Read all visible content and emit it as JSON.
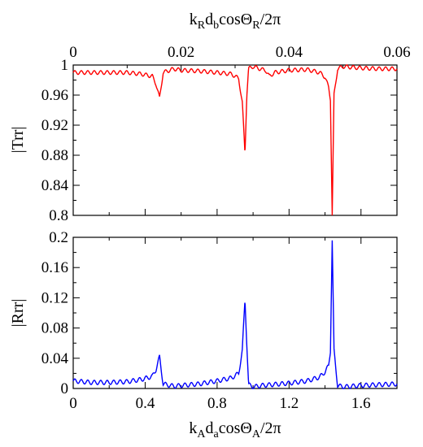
{
  "chart_data": [
    {
      "type": "line",
      "ylabel": "|Trr|",
      "ylim": [
        0.8,
        1.0
      ],
      "yticks": [
        "0.8",
        "0.84",
        "0.88",
        "0.92",
        "0.96",
        "1"
      ],
      "xlim": [
        0,
        1.8
      ],
      "top_axis": {
        "label_main": "k",
        "label_sub1": "R",
        "label_mid": "d",
        "label_sub2": "b",
        "label_cos": "cosΘ",
        "label_sub3": "R",
        "label_tail": "/2π",
        "lim": [
          0,
          0.06
        ],
        "ticks": [
          "0",
          "0.02",
          "0.04",
          "0.06"
        ]
      },
      "series": [
        {
          "color": "#ff0000",
          "x": [
            0,
            0.1,
            0.2,
            0.3,
            0.38,
            0.44,
            0.46,
            0.48,
            0.5,
            0.56,
            0.6,
            0.7,
            0.8,
            0.88,
            0.92,
            0.94,
            0.955,
            0.965,
            0.975,
            1.0,
            1.05,
            1.07,
            1.09,
            1.12,
            1.2,
            1.3,
            1.37,
            1.4,
            1.42,
            1.43,
            1.44,
            1.45,
            1.47,
            1.5,
            1.6,
            1.7,
            1.8
          ],
          "y": [
            0.99,
            0.99,
            0.99,
            0.99,
            0.988,
            0.985,
            0.975,
            0.956,
            0.99,
            0.995,
            0.993,
            0.992,
            0.99,
            0.988,
            0.982,
            0.95,
            0.882,
            0.96,
            0.995,
            0.998,
            0.994,
            0.993,
            0.985,
            0.99,
            0.993,
            0.994,
            0.99,
            0.984,
            0.97,
            0.955,
            0.8,
            0.96,
            0.995,
            0.998,
            0.996,
            0.995,
            0.995
          ]
        }
      ]
    },
    {
      "type": "line",
      "ylabel": "|Rrr|",
      "ylim": [
        0,
        0.2
      ],
      "yticks": [
        "0",
        "0.04",
        "0.08",
        "0.12",
        "0.16",
        "0.2"
      ],
      "xlim": [
        0,
        1.8
      ],
      "bottom_axis": {
        "label_main": "k",
        "label_sub1": "A",
        "label_mid": "d",
        "label_sub2": "a",
        "label_cos": "cosΘ",
        "label_sub3": "A",
        "label_tail": "/2π",
        "ticks": [
          "0",
          "0.4",
          "0.8",
          "1.2",
          "1.6"
        ],
        "tick_values": [
          0,
          0.4,
          0.8,
          1.2,
          1.6
        ]
      },
      "series": [
        {
          "color": "#0000ff",
          "x": [
            0,
            0.1,
            0.2,
            0.3,
            0.38,
            0.44,
            0.46,
            0.48,
            0.5,
            0.56,
            0.6,
            0.7,
            0.8,
            0.88,
            0.92,
            0.94,
            0.955,
            0.965,
            0.975,
            1.0,
            1.05,
            1.1,
            1.2,
            1.3,
            1.37,
            1.4,
            1.42,
            1.43,
            1.44,
            1.45,
            1.47,
            1.5,
            1.6,
            1.7,
            1.8
          ],
          "y": [
            0.01,
            0.008,
            0.008,
            0.009,
            0.012,
            0.016,
            0.025,
            0.042,
            0.006,
            0.003,
            0.004,
            0.006,
            0.01,
            0.014,
            0.02,
            0.05,
            0.118,
            0.06,
            0.005,
            0.002,
            0.004,
            0.005,
            0.007,
            0.01,
            0.015,
            0.022,
            0.03,
            0.05,
            0.196,
            0.05,
            0.004,
            0.002,
            0.004,
            0.005,
            0.006
          ]
        }
      ]
    }
  ]
}
